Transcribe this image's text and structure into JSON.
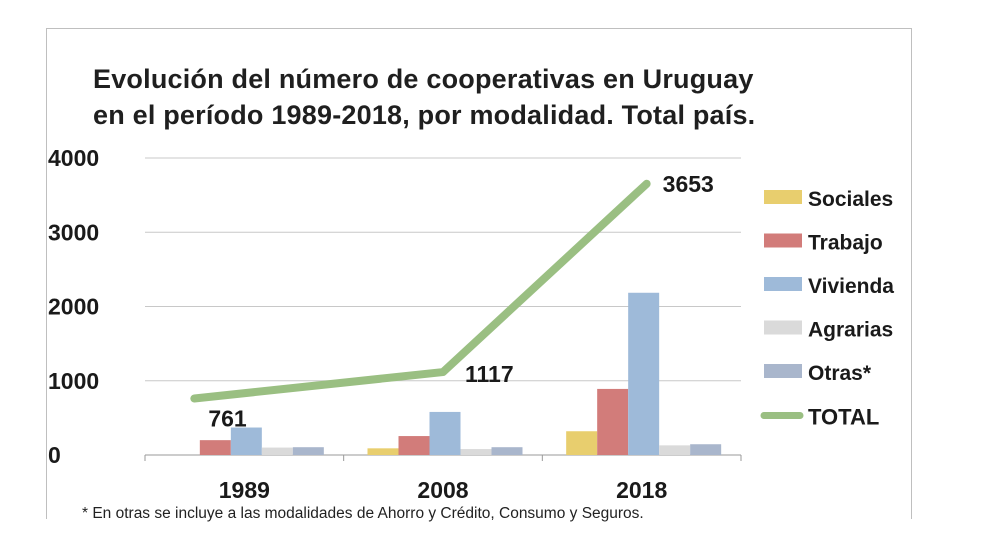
{
  "chart_data": {
    "type": "bar",
    "title": "Evolución del número de cooperativas en Uruguay en el período 1989-2018, por modalidad. Total país.",
    "title_lines": [
      "Evolución del número de cooperativas en Uruguay",
      "en el período 1989-2018, por modalidad. Total país."
    ],
    "categories": [
      "1989",
      "2008",
      "2018"
    ],
    "ylim": [
      0,
      4000
    ],
    "yticks": [
      "0",
      "1000",
      "2000",
      "3000",
      "4000"
    ],
    "grid": true,
    "legend_position": "right",
    "series": [
      {
        "name": "Sociales",
        "color": "#E8CE6E",
        "values": [
          0,
          90,
          320
        ]
      },
      {
        "name": "Trabajo",
        "color": "#D27C7A",
        "values": [
          200,
          255,
          890
        ]
      },
      {
        "name": "Vivienda",
        "color": "#9EBAD9",
        "values": [
          370,
          580,
          2185
        ]
      },
      {
        "name": "Agrarias",
        "color": "#DADADA",
        "values": [
          100,
          80,
          130
        ]
      },
      {
        "name": "Otras*",
        "color": "#A9B6CC",
        "values": [
          105,
          105,
          145
        ]
      }
    ],
    "line_series": {
      "name": "TOTAL",
      "color": "#9ABF82",
      "values": [
        761,
        1117,
        3653
      ],
      "labels": [
        "761",
        "1117",
        "3653"
      ]
    }
  },
  "footnote": "* En otras se incluye a las modalidades de Ahorro y Crédito, Consumo y Seguros."
}
